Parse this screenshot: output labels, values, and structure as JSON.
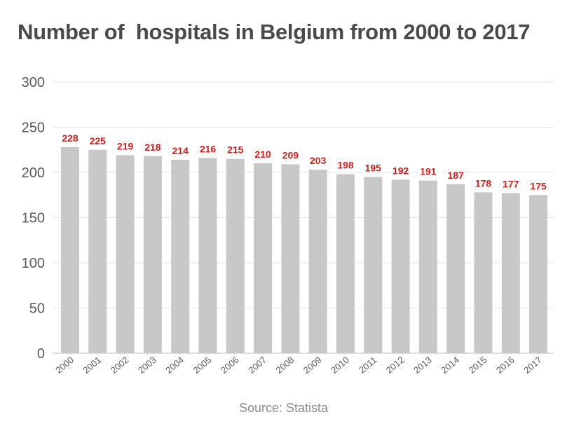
{
  "chart_data": {
    "type": "bar",
    "title": "Number of  hospitals in Belgium from 2000 to 2017",
    "xlabel": "",
    "ylabel": "",
    "categories": [
      "2000",
      "2001",
      "2002",
      "2003",
      "2004",
      "2005",
      "2006",
      "2007",
      "2008",
      "2009",
      "2010",
      "2011",
      "2012",
      "2013",
      "2014",
      "2015",
      "2016",
      "2017"
    ],
    "values": [
      228,
      225,
      219,
      218,
      214,
      216,
      215,
      210,
      209,
      203,
      198,
      195,
      192,
      191,
      187,
      178,
      177,
      175
    ],
    "ylim": [
      0,
      300
    ],
    "yticks": [
      0,
      50,
      100,
      150,
      200,
      250,
      300
    ],
    "grid": true,
    "legend": "none",
    "bar_color": "#c8c8c8",
    "value_label_color": "#cc1f1f",
    "axis_text_color": "#5a5a5a",
    "grid_color": "#e6e6e6"
  },
  "footer": {
    "source": "Source: Statista"
  }
}
